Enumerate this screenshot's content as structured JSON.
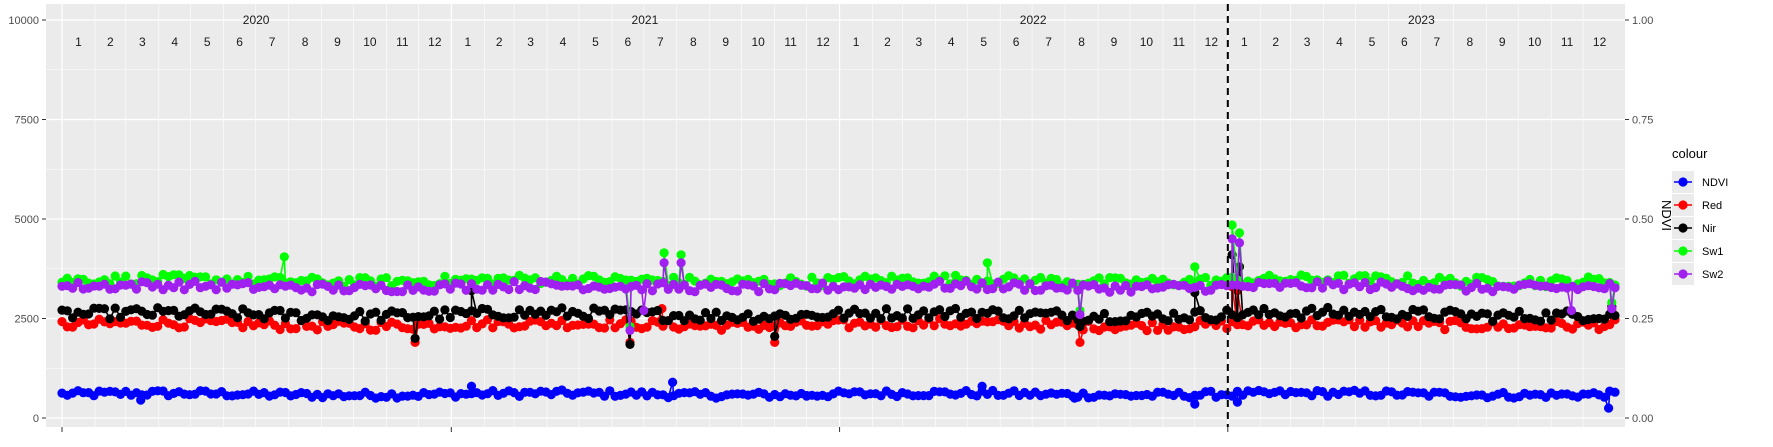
{
  "chart_data": {
    "type": "scatter",
    "title": "",
    "xlabel": "",
    "ylabel_left": "",
    "ylabel_right": "NDVI",
    "y_left_range": [
      0,
      10000
    ],
    "y_left_ticks": [
      0,
      2500,
      5000,
      7500,
      10000
    ],
    "y_left_tick_labels": [
      "0",
      "2500",
      "5000",
      "7500",
      "10000"
    ],
    "y_right_range": [
      0,
      1
    ],
    "y_right_ticks": [
      0,
      0.25,
      0.5,
      0.75,
      1
    ],
    "y_right_tick_labels": [
      "0.00",
      "0.25",
      "0.50",
      "0.75",
      "1.00"
    ],
    "x_range": [
      "2020-01-01",
      "2023-12-31"
    ],
    "year_labels": [
      "2020",
      "2021",
      "2022",
      "2023"
    ],
    "month_labels": [
      "1",
      "2",
      "3",
      "4",
      "5",
      "6",
      "7",
      "8",
      "9",
      "10",
      "11",
      "12"
    ],
    "vertical_line_date": "2023-01-01",
    "vertical_line_style": "dashed",
    "grid": true,
    "panel_background": "#ebebeb",
    "legend": {
      "title": "colour",
      "position": "right",
      "entries": [
        {
          "label": "NDVI",
          "color": "#0000ff"
        },
        {
          "label": "Red",
          "color": "#ff0000"
        },
        {
          "label": "Nir",
          "color": "#000000"
        },
        {
          "label": "Sw1",
          "color": "#00ff00"
        },
        {
          "label": "Sw2",
          "color": "#a020f0"
        }
      ]
    },
    "series": [
      {
        "name": "NDVI",
        "color": "#0000ff",
        "axis": "right",
        "baseline": 0.06,
        "noise": 0.008,
        "spikes": [
          [
            "2020-03-15",
            0.045
          ],
          [
            "2021-12-01",
            0.055
          ],
          [
            "2022-08-10",
            0.05
          ],
          [
            "2022-12-01",
            0.035
          ],
          [
            "2023-01-10",
            0.04
          ],
          [
            "2023-12-25",
            0.025
          ]
        ],
        "highs": [
          [
            "2021-01-20",
            0.08
          ],
          [
            "2021-07-28",
            0.09
          ],
          [
            "2022-05-15",
            0.08
          ]
        ]
      },
      {
        "name": "Red",
        "color": "#ff0000",
        "axis": "left",
        "baseline": 2350,
        "noise": 120,
        "spikes": [
          [
            "2020-11-28",
            1900
          ],
          [
            "2021-06-18",
            1900
          ],
          [
            "2021-11-01",
            1900
          ],
          [
            "2022-08-15",
            1900
          ],
          [
            "2023-01-05",
            3300
          ],
          [
            "2023-01-10",
            3200
          ]
        ],
        "highs": [
          [
            "2021-07-18",
            2750
          ],
          [
            "2023-12-28",
            2700
          ]
        ]
      },
      {
        "name": "Nir",
        "color": "#000000",
        "axis": "left",
        "baseline": 2600,
        "noise": 140,
        "spikes": [
          [
            "2020-11-28",
            2000
          ],
          [
            "2021-06-18",
            1850
          ],
          [
            "2021-11-01",
            2050
          ],
          [
            "2022-08-15",
            2300
          ],
          [
            "2023-01-05",
            4100
          ],
          [
            "2023-01-12",
            3800
          ]
        ],
        "highs": [
          [
            "2021-01-20",
            3200
          ],
          [
            "2022-12-01",
            3150
          ],
          [
            "2023-12-28",
            2800
          ]
        ]
      },
      {
        "name": "Sw1",
        "color": "#00ff00",
        "axis": "left",
        "baseline": 3450,
        "noise": 120,
        "spikes": [
          [
            "2021-06-18",
            2300
          ],
          [
            "2022-08-15",
            2700
          ]
        ],
        "highs": [
          [
            "2020-07-28",
            4050
          ],
          [
            "2021-07-20",
            4150
          ],
          [
            "2021-08-05",
            4100
          ],
          [
            "2022-05-20",
            3900
          ],
          [
            "2022-12-01",
            3800
          ],
          [
            "2023-01-05",
            4850
          ],
          [
            "2023-01-12",
            4650
          ],
          [
            "2023-12-28",
            2900
          ]
        ]
      },
      {
        "name": "Sw2",
        "color": "#a020f0",
        "axis": "left",
        "baseline": 3300,
        "noise": 110,
        "spikes": [
          [
            "2021-06-18",
            2200
          ],
          [
            "2021-07-01",
            2700
          ],
          [
            "2022-08-15",
            2600
          ],
          [
            "2023-11-20",
            2700
          ]
        ],
        "highs": [
          [
            "2021-07-20",
            3900
          ],
          [
            "2021-08-05",
            3900
          ],
          [
            "2023-01-05",
            4500
          ],
          [
            "2023-01-12",
            4400
          ],
          [
            "2023-12-28",
            2750
          ]
        ]
      }
    ]
  }
}
